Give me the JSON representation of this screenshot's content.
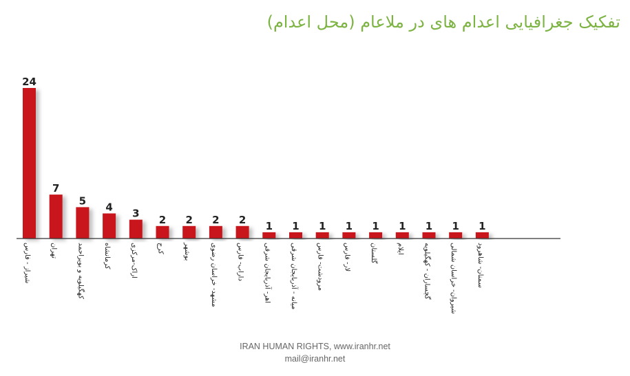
{
  "chart_data": {
    "type": "bar",
    "title": "تفکیک جغرافیایی اعدام های در ملاعام (محل اعدام)",
    "categories": [
      "شیراز - فارس",
      "تهران",
      "کهگیلویه و بویراحمد",
      "کرمانشاه",
      "اراک-مرکزی",
      "کرج",
      "بوشهر",
      "مشهد- خراسان رضوی",
      "داراب- فارس",
      "اهر- آذربایجان شرقی",
      "میانه - آذربایجان شرقی",
      "مرودشت- فارس",
      "لار- فارس",
      "گلستان",
      "ایلام",
      "گچساران - کهگیلویه",
      "شیروان- خراسان شمالی",
      "سمنان- شاهرود"
    ],
    "values": [
      24,
      7,
      5,
      4,
      3,
      2,
      2,
      2,
      2,
      1,
      1,
      1,
      1,
      1,
      1,
      1,
      1,
      1
    ],
    "ylim": [
      0,
      24
    ],
    "grid": false,
    "legend": "none",
    "bar_color": "#c8161d",
    "xlabel": "",
    "ylabel": ""
  },
  "footer": {
    "line1": "IRAN HUMAN RIGHTS, www.iranhr.net",
    "line2": "mail@iranhr.net"
  },
  "colors": {
    "title": "#7cb342",
    "bar": "#c8161d",
    "axis": "#333333"
  }
}
